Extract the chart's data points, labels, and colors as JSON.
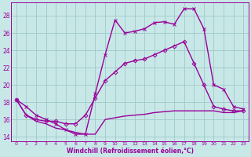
{
  "background_color": "#c8e8e8",
  "grid_color": "#a0c8c8",
  "line_color": "#990099",
  "xlabel": "Windchill (Refroidissement éolien,°C)",
  "xlim": [
    -0.5,
    23.5
  ],
  "ylim": [
    13.5,
    29.5
  ],
  "yticks": [
    14,
    16,
    18,
    20,
    22,
    24,
    26,
    28
  ],
  "xticks": [
    0,
    1,
    2,
    3,
    4,
    5,
    6,
    7,
    8,
    9,
    10,
    11,
    12,
    13,
    14,
    15,
    16,
    17,
    18,
    19,
    20,
    21,
    22,
    23
  ],
  "series": [
    {
      "x": [
        0,
        1,
        2,
        3,
        4,
        5,
        6,
        7,
        8,
        9,
        10,
        11,
        12,
        13,
        14,
        15,
        16,
        17,
        18,
        19,
        20,
        21,
        22,
        23
      ],
      "y": [
        18.3,
        17.5,
        16.5,
        16.0,
        15.5,
        14.8,
        14.3,
        14.3,
        19.0,
        23.5,
        27.5,
        26.0,
        26.2,
        26.5,
        27.2,
        27.3,
        27.0,
        28.8,
        28.8,
        26.5,
        20.0,
        19.5,
        17.5,
        17.2
      ],
      "marker": "x",
      "markersize": 3,
      "linewidth": 1.0
    },
    {
      "x": [
        0,
        1,
        2,
        3,
        4,
        5,
        6,
        7,
        8,
        9,
        10,
        11,
        12,
        13,
        14,
        15,
        16,
        17,
        18,
        19,
        20,
        21,
        22,
        23
      ],
      "y": [
        18.3,
        16.5,
        16.0,
        15.8,
        15.8,
        15.5,
        15.5,
        16.5,
        18.5,
        20.5,
        21.5,
        22.5,
        22.8,
        23.0,
        23.5,
        24.0,
        24.5,
        25.0,
        22.5,
        20.0,
        17.5,
        17.2,
        17.0,
        17.0
      ],
      "marker": "D",
      "markersize": 2.5,
      "linewidth": 1.0
    },
    {
      "x": [
        0,
        1,
        2,
        3,
        4,
        5,
        6,
        7,
        8,
        9,
        10,
        11,
        12,
        13,
        14,
        15,
        16,
        17,
        18,
        19,
        20,
        21,
        22,
        23
      ],
      "y": [
        18.3,
        16.5,
        15.8,
        15.5,
        15.0,
        14.8,
        14.5,
        14.3,
        14.3,
        16.0,
        16.2,
        16.4,
        16.5,
        16.6,
        16.8,
        16.9,
        17.0,
        17.0,
        17.0,
        17.0,
        17.0,
        16.8,
        16.8,
        17.0
      ],
      "marker": "None",
      "markersize": 0,
      "linewidth": 1.0
    }
  ]
}
